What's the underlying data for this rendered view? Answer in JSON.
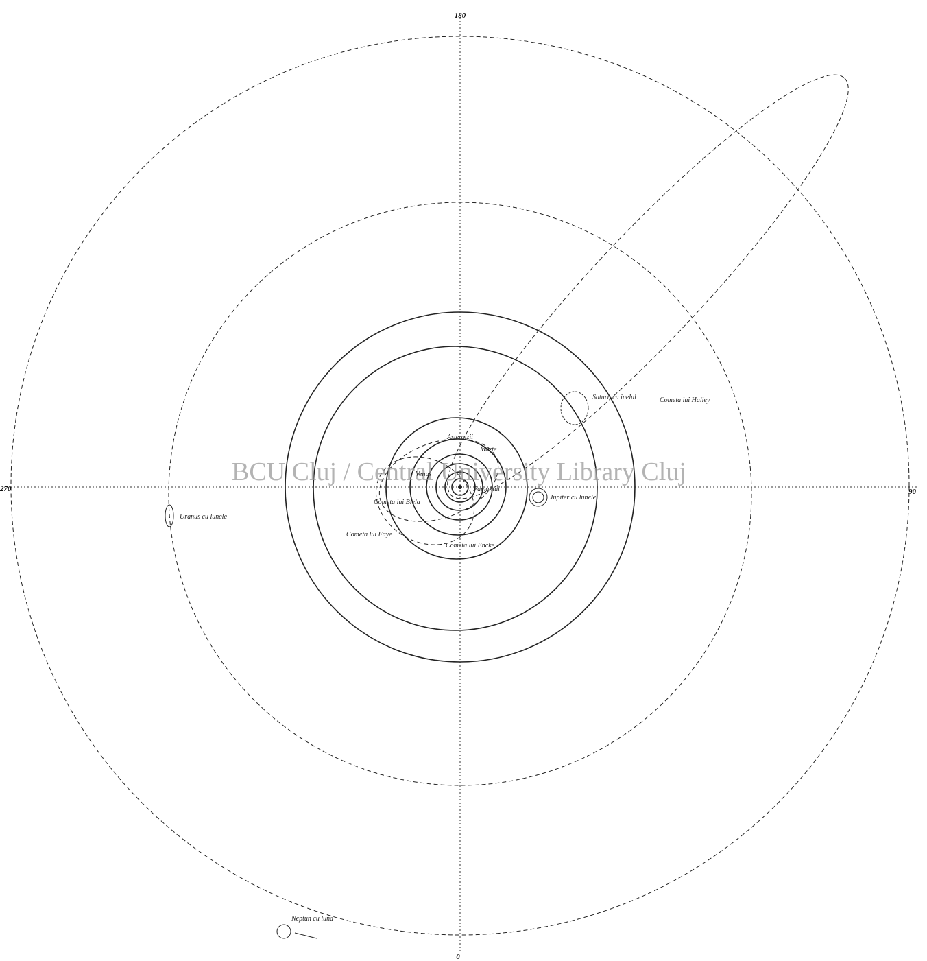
{
  "axis_labels": {
    "top": "180",
    "right": "90",
    "left": "270",
    "bottom": "0"
  },
  "watermark": "BCU Cluj / Central University Library Cluj",
  "labels": {
    "halley": "Cometa lui Halley",
    "saturn": "Saturn cu inelul",
    "jupiter": "Jupiter cu lunele",
    "uranus": "Uranus cu lunele",
    "neptune": "Neptun cu luna",
    "encke": "Cometa lui Encke",
    "faye": "Cometa lui Faye",
    "biela": "Cometa lui Biela",
    "mars": "Marte",
    "earth": "Pamantul",
    "venus": "Venus",
    "asteroids": "Asteroizii"
  }
}
